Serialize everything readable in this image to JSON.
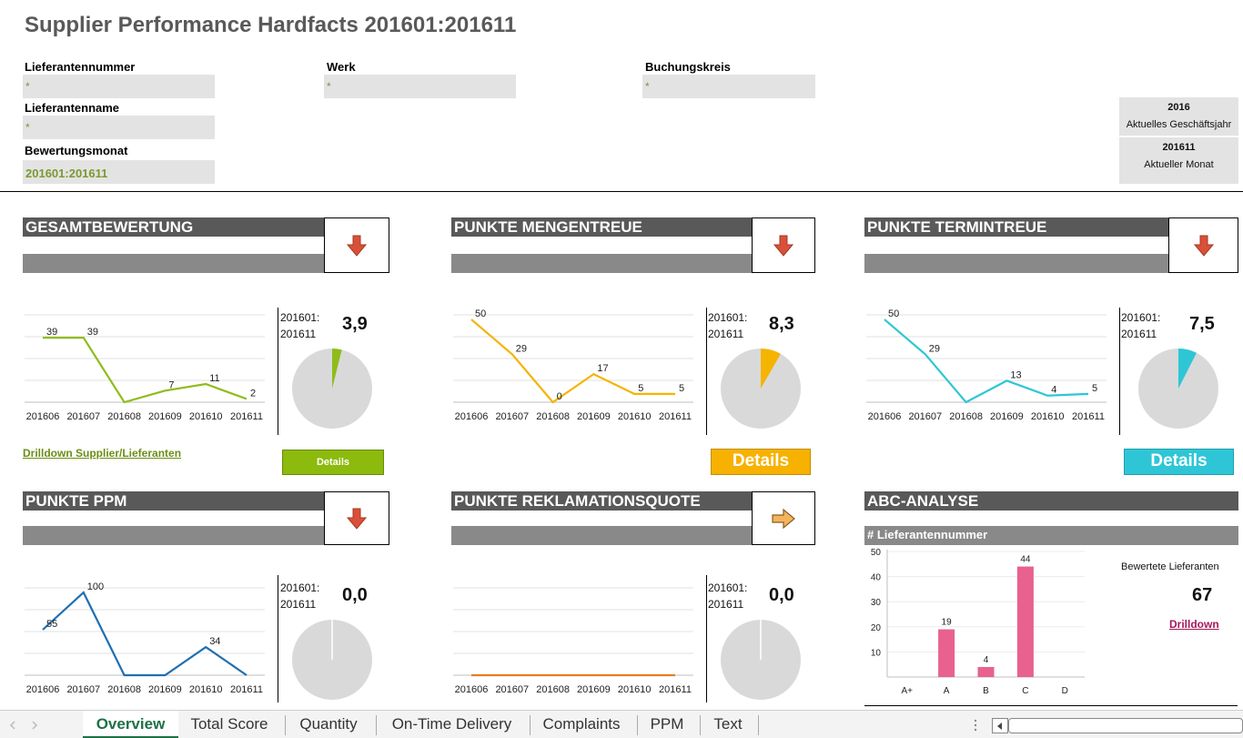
{
  "page_title": "Supplier Performance Hardfacts 201601:201611",
  "filters": {
    "lieferantennummer": {
      "label": "Lieferantennummer",
      "value": "*"
    },
    "lieferantenname": {
      "label": "Lieferantenname",
      "value": "*"
    },
    "bewertungsmonat": {
      "label": "Bewertungsmonat",
      "value": "201601:201611"
    },
    "werk": {
      "label": "Werk",
      "value": "*"
    },
    "buchungskreis": {
      "label": "Buchungskreis",
      "value": "*"
    }
  },
  "current": {
    "year": "2016",
    "year_label": "Aktuelles Geschäftsjahr",
    "month": "201611",
    "month_label": "Aktueller Monat"
  },
  "period_line1": "201601:",
  "period_line2": "201611",
  "details_label": "Details",
  "drilldown_label": "Drilldown Supplier/Lieferanten",
  "panels": {
    "gesamt": {
      "title": "GESAMTBEWERTUNG",
      "kpi": "3,9",
      "trend": "down",
      "pie_share": 0.039,
      "color": "#8fbc1a"
    },
    "menge": {
      "title": "PUNKTE MENGENTREUE",
      "kpi": "8,3",
      "trend": "down",
      "pie_share": 0.083,
      "color": "#f5b400"
    },
    "termin": {
      "title": "PUNKTE TERMINTREUE",
      "kpi": "7,5",
      "trend": "down",
      "pie_share": 0.075,
      "color": "#2ec6d6"
    },
    "ppm": {
      "title": "PUNKTE PPM",
      "kpi": "0,0",
      "trend": "down",
      "pie_share": 0,
      "color": "#1f6fb0"
    },
    "reklamation": {
      "title": "PUNKTE REKLAMATIONSQUOTE",
      "kpi": "0,0",
      "trend": "right",
      "pie_share": 0,
      "color": "#e67e22"
    }
  },
  "abc": {
    "title": "ABC-ANALYSE",
    "subtitle": "# Lieferantennummer",
    "bewertete_label": "Bewertete Lieferanten",
    "bewertete_value": "67",
    "drilldown_label": "Drilldown",
    "color": "#e8618f"
  },
  "colors": {
    "arrow_down": "#d9503a",
    "arrow_right": "#f3b45e",
    "pie_bg": "#d9d9d9",
    "tab_active": "#1e7145"
  },
  "chart_data": [
    {
      "type": "line",
      "id": "gesamt",
      "x": [
        "201606",
        "201607",
        "201608",
        "201609",
        "201610",
        "201611"
      ],
      "series": [
        {
          "values": [
            39,
            39,
            0,
            7,
            11,
            2
          ],
          "labels": [
            "39",
            "39",
            "",
            "7",
            "11",
            "2"
          ]
        }
      ],
      "ylim": [
        0,
        55
      ]
    },
    {
      "type": "line",
      "id": "menge",
      "x": [
        "201606",
        "201607",
        "201608",
        "201609",
        "201610",
        "201611"
      ],
      "series": [
        {
          "values": [
            50,
            29,
            0,
            17,
            5,
            5
          ],
          "labels": [
            "50",
            "29",
            "0",
            "17",
            "5",
            "5"
          ]
        }
      ],
      "ylim": [
        0,
        55
      ]
    },
    {
      "type": "line",
      "id": "termin",
      "x": [
        "201606",
        "201607",
        "201608",
        "201609",
        "201610",
        "201611"
      ],
      "series": [
        {
          "values": [
            50,
            29,
            0,
            13,
            4,
            5
          ],
          "labels": [
            "50",
            "29",
            "",
            "13",
            "4",
            "5"
          ]
        }
      ],
      "ylim": [
        0,
        55
      ]
    },
    {
      "type": "line",
      "id": "ppm",
      "x": [
        "201606",
        "201607",
        "201608",
        "201609",
        "201610",
        "201611"
      ],
      "series": [
        {
          "values": [
            55,
            100,
            0,
            0,
            34,
            0
          ],
          "labels": [
            "55",
            "100",
            "",
            "",
            "34",
            ""
          ]
        }
      ],
      "ylim": [
        0,
        110
      ]
    },
    {
      "type": "line",
      "id": "reklamation",
      "x": [
        "201606",
        "201607",
        "201608",
        "201609",
        "201610",
        "201611"
      ],
      "series": [
        {
          "values": [
            0,
            0,
            0,
            0,
            0,
            0
          ],
          "labels": [
            "",
            "",
            "",
            "",
            "",
            ""
          ]
        }
      ],
      "ylim": [
        0,
        55
      ]
    },
    {
      "type": "bar",
      "id": "abc",
      "categories": [
        "A+",
        "A",
        "B",
        "C",
        "D"
      ],
      "values": [
        0,
        19,
        4,
        44,
        0
      ],
      "value_labels": [
        "",
        "19",
        "4",
        "44",
        ""
      ],
      "yticks": [
        "10",
        "20",
        "30",
        "40",
        "50"
      ],
      "ylim": [
        0,
        50
      ]
    }
  ],
  "sheet_tabs": [
    {
      "label": "Overview",
      "active": true
    },
    {
      "label": "Total Score",
      "active": false
    },
    {
      "label": "Quantity",
      "active": false
    },
    {
      "label": "On-Time Delivery",
      "active": false
    },
    {
      "label": "Complaints",
      "active": false
    },
    {
      "label": "PPM",
      "active": false
    },
    {
      "label": "Text",
      "active": false
    }
  ]
}
